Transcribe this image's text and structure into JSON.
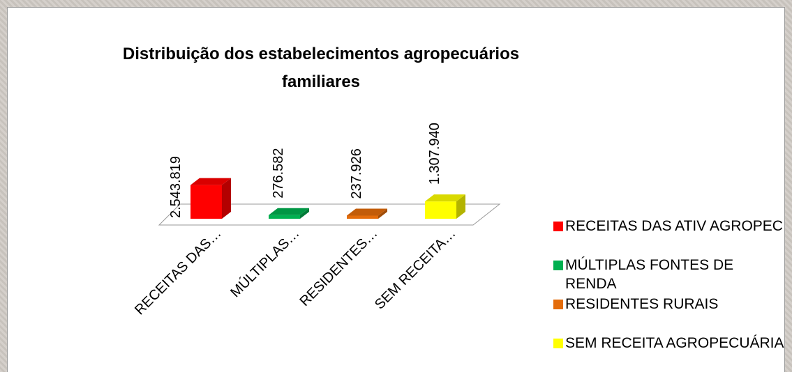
{
  "chart_data": {
    "type": "bar3d",
    "title": "Distribuição dos estabelecimentos agropecuários familiares",
    "categories": [
      "RECEITAS DAS…",
      "MÚLTIPLAS…",
      "RESIDENTES…",
      "SEM RECEITA…"
    ],
    "legend": [
      "RECEITAS DAS ATIV AGROPEC",
      "MÚLTIPLAS FONTES DE RENDA",
      "RESIDENTES RURAIS",
      "SEM RECEITA AGROPECUÁRIA"
    ],
    "values": [
      2543819,
      276582,
      237926,
      1307940
    ],
    "value_labels": [
      "2.543.819",
      "276.582",
      "237.926",
      "1.307.940"
    ],
    "colors": [
      "#ff0000",
      "#00b050",
      "#e46c0a",
      "#ffff00"
    ],
    "ylim": [
      0,
      10000000
    ]
  }
}
